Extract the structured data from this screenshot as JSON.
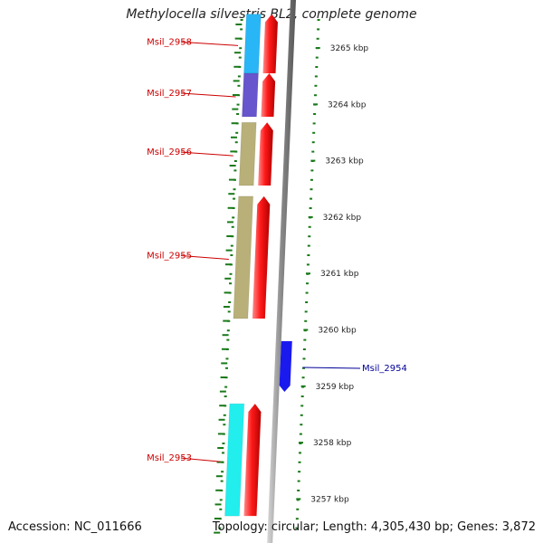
{
  "title": "Methylocella silvestris BL2, complete genome",
  "footer": {
    "accession": "Accession: NC_011666",
    "topology": "Topology: circular; Length: 4,305,430 bp; Genes: 3,872"
  },
  "colors": {
    "reverse_gene_label": "#cc0000",
    "forward_gene_label": "#000099",
    "cds_arrow": "#ee0000",
    "forward_gene": "#1a1aee",
    "tick": "#1a7a1a",
    "backbone": "#888888"
  },
  "scale_labels": [
    "3265 kbp",
    "3264 kbp",
    "3263 kbp",
    "3262 kbp",
    "3261 kbp",
    "3260 kbp",
    "3259 kbp",
    "3258 kbp",
    "3257 kbp"
  ],
  "genes": [
    {
      "name": "Msil_2958",
      "strand": "reverse",
      "category_color": "#29b6f6",
      "start_kbp": 3264.55,
      "end_kbp": 3265.6
    },
    {
      "name": "Msil_2957",
      "strand": "reverse",
      "category_color": "#6655cc",
      "start_kbp": 3263.78,
      "end_kbp": 3264.55
    },
    {
      "name": "Msil_2956",
      "strand": "reverse",
      "category_color": "#b8b078",
      "start_kbp": 3262.56,
      "end_kbp": 3263.68
    },
    {
      "name": "Msil_2955",
      "strand": "reverse",
      "category_color": "#b8b078",
      "start_kbp": 3260.2,
      "end_kbp": 3262.37
    },
    {
      "name": "Msil_2954",
      "strand": "forward",
      "category_color": "#1a1aee",
      "start_kbp": 3258.9,
      "end_kbp": 3259.8
    },
    {
      "name": "Msil_2953",
      "strand": "reverse",
      "category_color": "#22eeee",
      "start_kbp": 3256.7,
      "end_kbp": 3258.69
    }
  ]
}
